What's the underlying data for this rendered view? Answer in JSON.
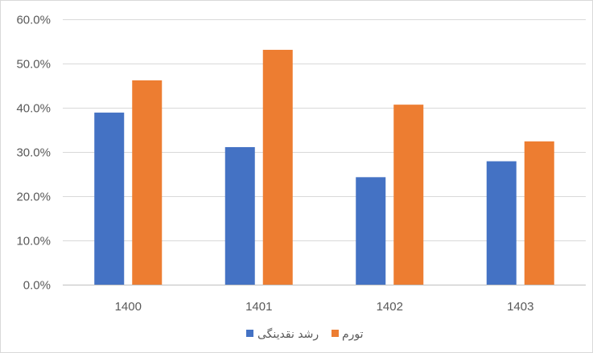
{
  "chart_data": {
    "type": "bar",
    "title": "",
    "xlabel": "",
    "ylabel": "",
    "categories": [
      "1400",
      "1401",
      "1402",
      "1403"
    ],
    "series": [
      {
        "name": "رشد نقدینگی",
        "values": [
          0.389,
          0.311,
          0.243,
          0.279
        ],
        "color": "#4472c4"
      },
      {
        "name": "تورم",
        "values": [
          0.462,
          0.531,
          0.407,
          0.324
        ],
        "color": "#ed7d31"
      }
    ],
    "ylim": [
      0,
      0.6
    ],
    "yticks": [
      "0.0%",
      "10.0%",
      "20.0%",
      "30.0%",
      "40.0%",
      "50.0%",
      "60.0%"
    ],
    "grid": true,
    "legend_position": "bottom",
    "gridline_color": "#d9d9d9",
    "axis_color": "#bfbfbf"
  }
}
